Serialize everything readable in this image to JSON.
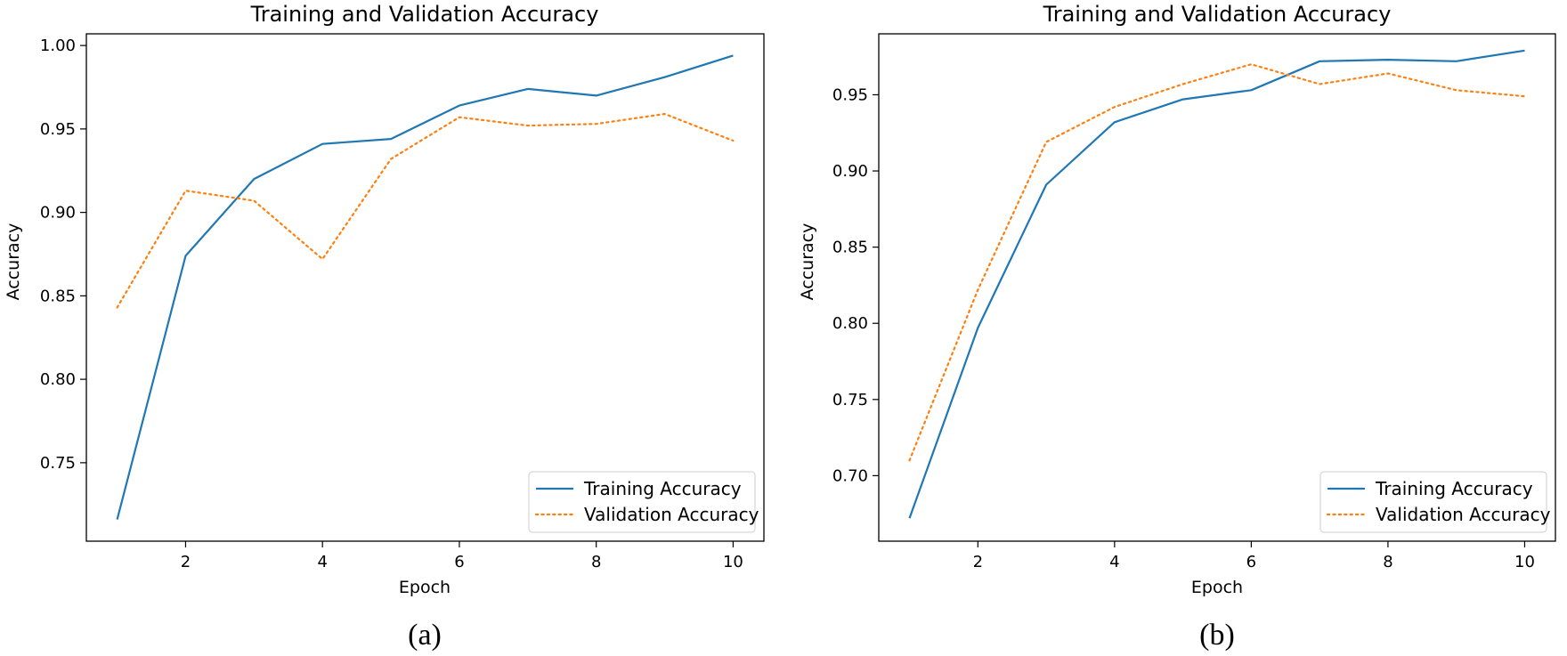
{
  "figure": {
    "captions": [
      "(a)",
      "(b)"
    ]
  },
  "chart_data": [
    {
      "type": "line",
      "title": "Training and Validation Accuracy",
      "xlabel": "Epoch",
      "ylabel": "Accuracy",
      "xlim": [
        0.55,
        10.45
      ],
      "ylim": [
        0.703,
        1.007
      ],
      "xticks": [
        2,
        4,
        6,
        8,
        10
      ],
      "yticks": [
        0.75,
        0.8,
        0.85,
        0.9,
        0.95,
        1.0
      ],
      "ytick_labels": [
        "0.75",
        "0.80",
        "0.85",
        "0.90",
        "0.95",
        "1.00"
      ],
      "legend_position": "lower-right",
      "x": [
        1,
        2,
        3,
        4,
        5,
        6,
        7,
        8,
        9,
        10
      ],
      "series": [
        {
          "name": "Training Accuracy",
          "color": "#1f77b4",
          "style": "solid",
          "values": [
            0.716,
            0.874,
            0.92,
            0.941,
            0.944,
            0.964,
            0.974,
            0.97,
            0.981,
            0.994
          ]
        },
        {
          "name": "Validation Accuracy",
          "color": "#ff7f0e",
          "style": "dotted",
          "values": [
            0.843,
            0.913,
            0.907,
            0.872,
            0.932,
            0.957,
            0.952,
            0.953,
            0.959,
            0.943
          ]
        }
      ]
    },
    {
      "type": "line",
      "title": "Training and Validation Accuracy",
      "xlabel": "Epoch",
      "ylabel": "Accuracy",
      "xlim": [
        0.55,
        10.45
      ],
      "ylim": [
        0.657,
        0.99
      ],
      "xticks": [
        2,
        4,
        6,
        8,
        10
      ],
      "yticks": [
        0.7,
        0.75,
        0.8,
        0.85,
        0.9,
        0.95
      ],
      "ytick_labels": [
        "0.70",
        "0.75",
        "0.80",
        "0.85",
        "0.90",
        "0.95"
      ],
      "legend_position": "lower-right",
      "x": [
        1,
        2,
        3,
        4,
        5,
        6,
        7,
        8,
        9,
        10
      ],
      "series": [
        {
          "name": "Training Accuracy",
          "color": "#1f77b4",
          "style": "solid",
          "values": [
            0.672,
            0.797,
            0.891,
            0.932,
            0.947,
            0.953,
            0.972,
            0.973,
            0.972,
            0.979
          ]
        },
        {
          "name": "Validation Accuracy",
          "color": "#ff7f0e",
          "style": "dotted",
          "values": [
            0.71,
            0.822,
            0.919,
            0.942,
            0.957,
            0.97,
            0.957,
            0.964,
            0.953,
            0.949
          ]
        }
      ]
    }
  ]
}
